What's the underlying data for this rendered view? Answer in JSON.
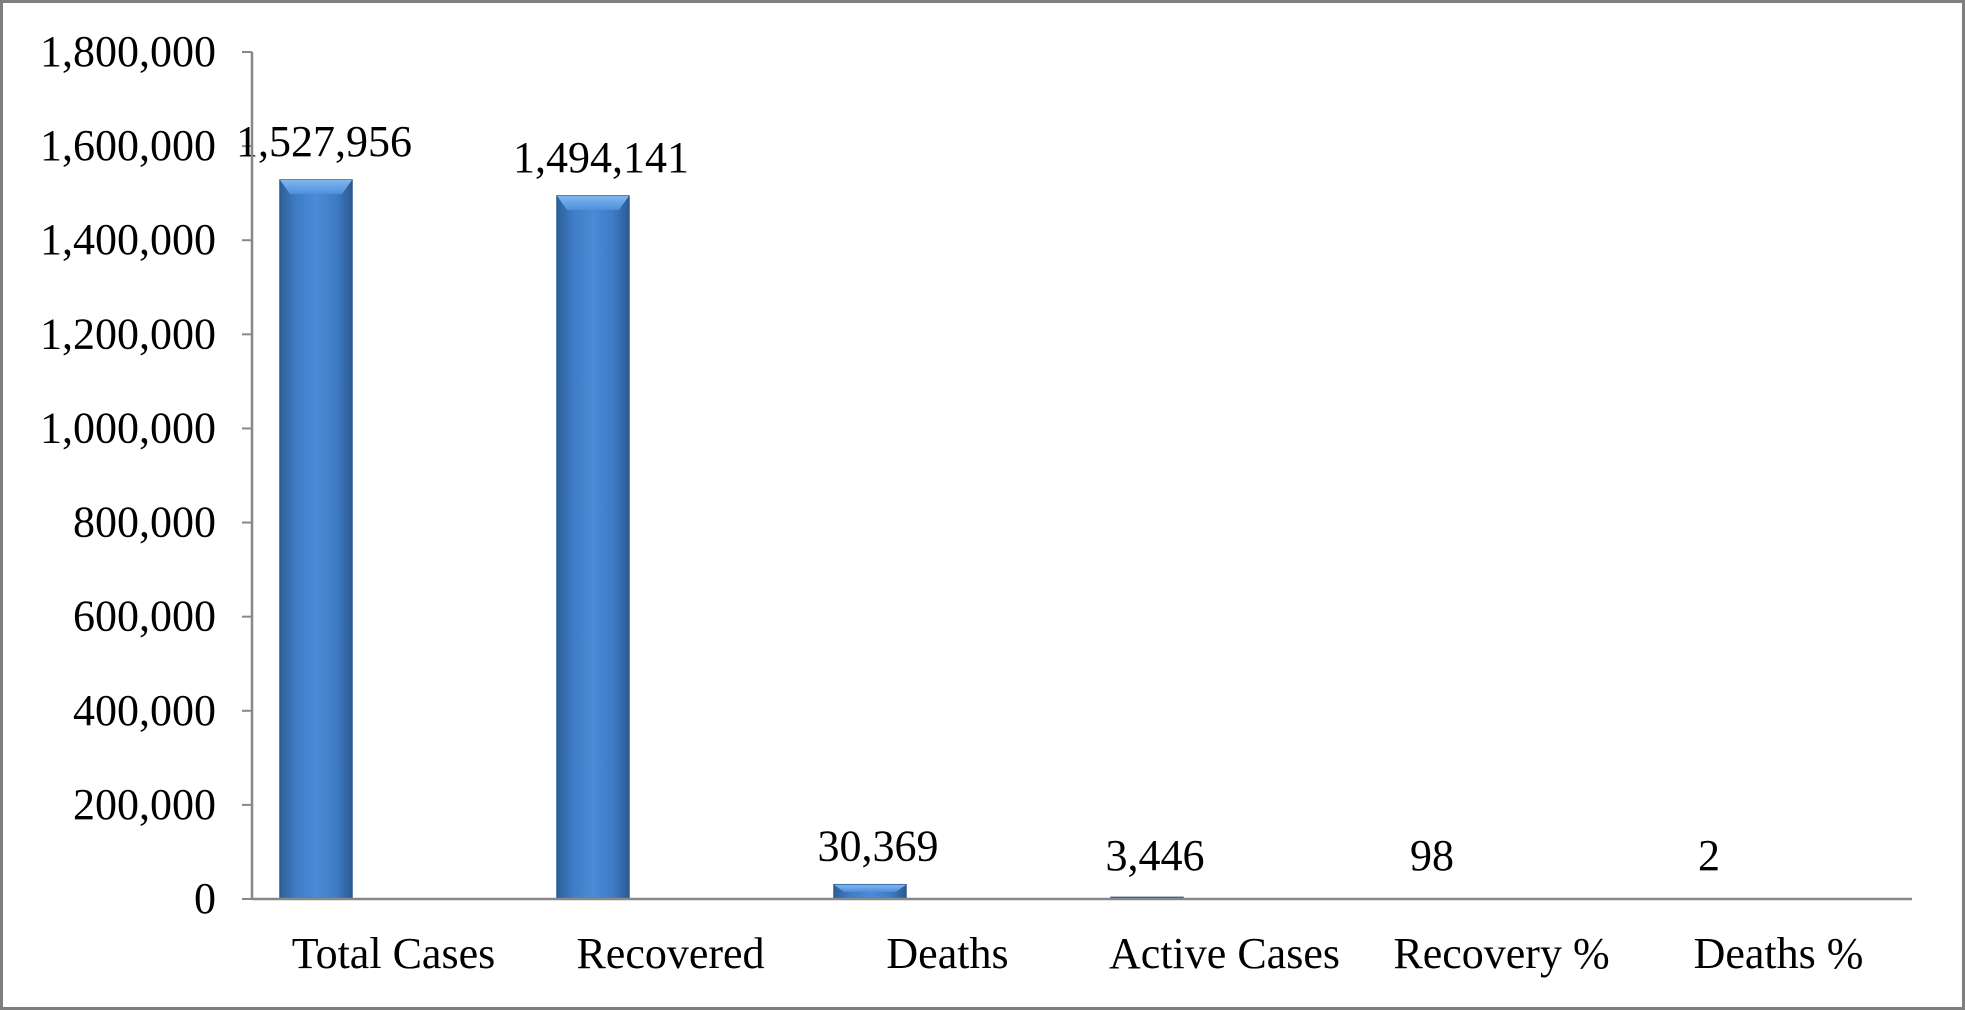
{
  "chart_data": {
    "type": "bar",
    "title": "",
    "xlabel": "",
    "ylabel": "",
    "categories": [
      "Total Cases",
      "Recovered",
      "Deaths",
      "Active Cases",
      "Recovery %",
      "Deaths %"
    ],
    "values": [
      1527956,
      1494141,
      30369,
      3446,
      98,
      2
    ],
    "data_labels": [
      "1,527,956",
      "1,494,141",
      "30,369",
      "3,446",
      "98",
      "2"
    ],
    "ylim": [
      0,
      1800000
    ],
    "yticks": [
      0,
      200000,
      400000,
      600000,
      800000,
      1000000,
      1200000,
      1400000,
      1600000,
      1800000
    ],
    "ytick_labels": [
      "0",
      "200,000",
      "400,000",
      "600,000",
      "800,000",
      "1,000,000",
      "1,200,000",
      "1,400,000",
      "1,600,000",
      "1,800,000"
    ],
    "grid": false,
    "legend": "none",
    "bar_color": "#3c7ac4"
  }
}
